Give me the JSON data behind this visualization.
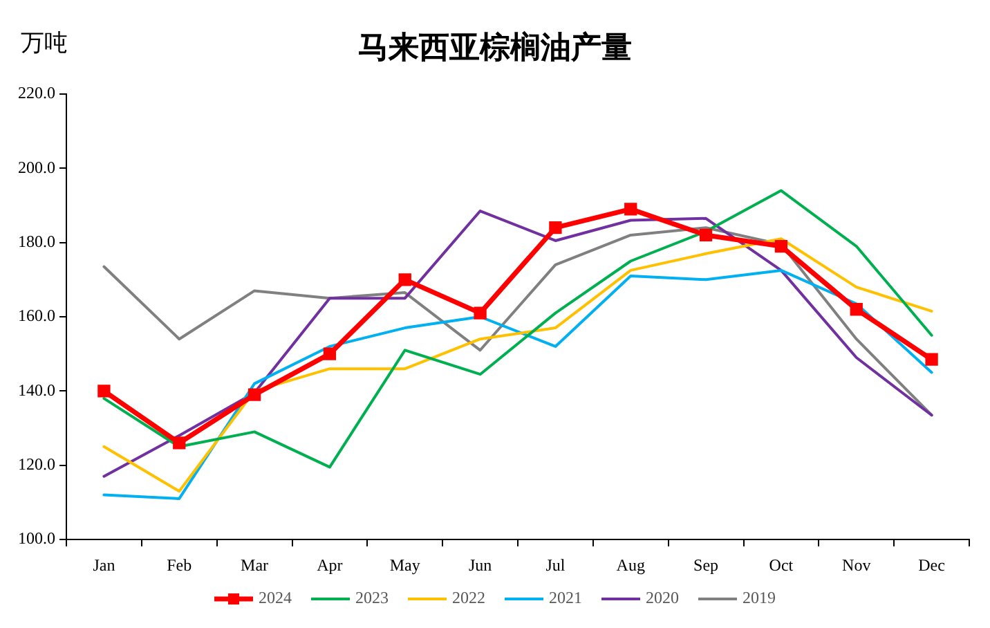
{
  "chart_data": {
    "type": "line",
    "title": "马来西亚棕榈油产量",
    "ylabel": "万吨",
    "categories": [
      "Jan",
      "Feb",
      "Mar",
      "Apr",
      "May",
      "Jun",
      "Jul",
      "Aug",
      "Sep",
      "Oct",
      "Nov",
      "Dec"
    ],
    "series": [
      {
        "name": "2024",
        "color": "#ff0000",
        "marker": "square",
        "values": [
          140,
          126,
          139,
          150,
          170,
          161,
          184,
          189,
          182,
          179,
          162,
          148.5
        ]
      },
      {
        "name": "2023",
        "color": "#00b050",
        "marker": "none",
        "values": [
          138,
          125,
          129,
          119.5,
          151,
          144.5,
          161,
          175,
          183,
          194,
          179,
          155
        ]
      },
      {
        "name": "2022",
        "color": "#ffc000",
        "marker": "none",
        "values": [
          125,
          113,
          140,
          146,
          146,
          154,
          157,
          172.5,
          177,
          181,
          168,
          161.5
        ]
      },
      {
        "name": "2021",
        "color": "#00b0f0",
        "marker": "none",
        "values": [
          112,
          111,
          142,
          152,
          157,
          160,
          152,
          171,
          170,
          172.5,
          163.5,
          145
        ]
      },
      {
        "name": "2020",
        "color": "#7030a0",
        "marker": "none",
        "values": [
          117,
          128,
          139.5,
          165,
          165,
          188.5,
          180.5,
          186,
          186.5,
          172.5,
          149,
          133.5
        ]
      },
      {
        "name": "2019",
        "color": "#808080",
        "marker": "none",
        "values": [
          173.5,
          154,
          167,
          165,
          166.5,
          151,
          174,
          182,
          184,
          179.5,
          154,
          133.5
        ]
      }
    ],
    "ylim": [
      100,
      220
    ],
    "yticks": [
      {
        "value": 100,
        "label": "100.0"
      },
      {
        "value": 120,
        "label": "120.0"
      },
      {
        "value": 140,
        "label": "140.0"
      },
      {
        "value": 160,
        "label": "160.0"
      },
      {
        "value": 180,
        "label": "180.0"
      },
      {
        "value": 200,
        "label": "200.0"
      },
      {
        "value": 220,
        "label": "220.0"
      }
    ],
    "grid": false,
    "legend": "bottom",
    "line_style": "solid"
  }
}
